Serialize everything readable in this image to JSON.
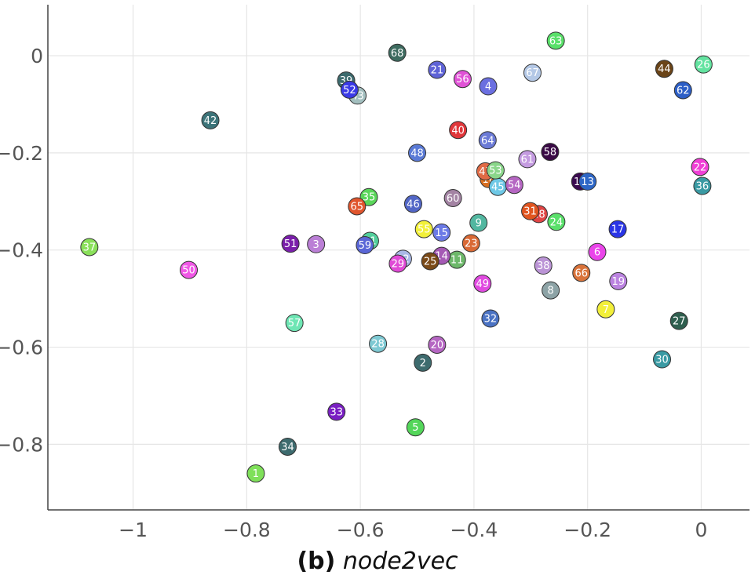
{
  "caption": {
    "panel": "(b)",
    "method": "node2vec"
  },
  "chart_data": {
    "type": "scatter",
    "title": "",
    "xlabel": "",
    "ylabel": "",
    "xlim": [
      -1.15,
      0.085
    ],
    "ylim": [
      -0.935,
      0.105
    ],
    "xticks": [
      -1,
      -0.8,
      -0.6,
      -0.4,
      -0.2,
      0
    ],
    "xtick_labels": [
      "−1",
      "−0.8",
      "−0.6",
      "−0.4",
      "−0.2",
      "0"
    ],
    "yticks": [
      0,
      -0.2,
      -0.4,
      -0.6,
      -0.8
    ],
    "ytick_labels": [
      "0",
      "−0.2",
      "−0.4",
      "−0.6",
      "−0.8"
    ],
    "grid": true,
    "points": [
      {
        "label": "1",
        "x": -0.784,
        "y": -0.86,
        "color": "#7fe05a"
      },
      {
        "label": "2",
        "x": -0.49,
        "y": -0.632,
        "color": "#3d6b6e"
      },
      {
        "label": "3",
        "x": -0.678,
        "y": -0.388,
        "color": "#bb7fd6"
      },
      {
        "label": "4",
        "x": -0.375,
        "y": -0.063,
        "color": "#6b6fe0"
      },
      {
        "label": "5",
        "x": -0.503,
        "y": -0.765,
        "color": "#54d65a"
      },
      {
        "label": "6",
        "x": -0.183,
        "y": -0.404,
        "color": "#ea45ea"
      },
      {
        "label": "7",
        "x": -0.168,
        "y": -0.522,
        "color": "#f2ef3a"
      },
      {
        "label": "8",
        "x": -0.265,
        "y": -0.483,
        "color": "#8da3a6"
      },
      {
        "label": "9",
        "x": -0.392,
        "y": -0.344,
        "color": "#52b7a0"
      },
      {
        "label": "10",
        "x": -0.213,
        "y": -0.259,
        "color": "#3a0a50"
      },
      {
        "label": "11",
        "x": -0.43,
        "y": -0.42,
        "color": "#6db86a"
      },
      {
        "label": "12",
        "x": -0.525,
        "y": -0.418,
        "color": "#a9b8e6"
      },
      {
        "label": "13",
        "x": -0.2,
        "y": -0.259,
        "color": "#2d66c6"
      },
      {
        "label": "14",
        "x": -0.457,
        "y": -0.412,
        "color": "#a55ab5"
      },
      {
        "label": "15",
        "x": -0.457,
        "y": -0.364,
        "color": "#6b7ae6"
      },
      {
        "label": "16",
        "x": -0.374,
        "y": -0.254,
        "color": "#d86f22"
      },
      {
        "label": "17",
        "x": -0.147,
        "y": -0.357,
        "color": "#2a35e6"
      },
      {
        "label": "18",
        "x": -0.286,
        "y": -0.326,
        "color": "#e04545"
      },
      {
        "label": "19",
        "x": -0.146,
        "y": -0.464,
        "color": "#bb83e0"
      },
      {
        "label": "20",
        "x": -0.465,
        "y": -0.595,
        "color": "#b566c2"
      },
      {
        "label": "21",
        "x": -0.465,
        "y": -0.029,
        "color": "#5f63d6"
      },
      {
        "label": "22",
        "x": -0.002,
        "y": -0.229,
        "color": "#f03fd6"
      },
      {
        "label": "23",
        "x": -0.405,
        "y": -0.386,
        "color": "#d96935"
      },
      {
        "label": "24",
        "x": -0.255,
        "y": -0.342,
        "color": "#5ae06a"
      },
      {
        "label": "25",
        "x": -0.477,
        "y": -0.423,
        "color": "#7a4a18"
      },
      {
        "label": "26",
        "x": 0.004,
        "y": -0.018,
        "color": "#63e3a0"
      },
      {
        "label": "27",
        "x": -0.039,
        "y": -0.546,
        "color": "#2f5f4f"
      },
      {
        "label": "28",
        "x": -0.569,
        "y": -0.593,
        "color": "#7ec9d3"
      },
      {
        "label": "29",
        "x": -0.534,
        "y": -0.428,
        "color": "#e04ad6"
      },
      {
        "label": "30",
        "x": -0.069,
        "y": -0.625,
        "color": "#3a9aa3"
      },
      {
        "label": "31",
        "x": -0.301,
        "y": -0.32,
        "color": "#e05520"
      },
      {
        "label": "32",
        "x": -0.371,
        "y": -0.541,
        "color": "#4a72c3"
      },
      {
        "label": "33",
        "x": -0.642,
        "y": -0.733,
        "color": "#7a1fc3"
      },
      {
        "label": "34",
        "x": -0.728,
        "y": -0.805,
        "color": "#3d6b6e"
      },
      {
        "label": "35",
        "x": -0.585,
        "y": -0.291,
        "color": "#5ad65a"
      },
      {
        "label": "36",
        "x": 0.002,
        "y": -0.268,
        "color": "#3a9aa3"
      },
      {
        "label": "37",
        "x": -1.077,
        "y": -0.394,
        "color": "#8ae05a"
      },
      {
        "label": "38",
        "x": -0.278,
        "y": -0.432,
        "color": "#bb94d6"
      },
      {
        "label": "39",
        "x": -0.625,
        "y": -0.051,
        "color": "#3d6b6e"
      },
      {
        "label": "40",
        "x": -0.428,
        "y": -0.153,
        "color": "#e0363a"
      },
      {
        "label": "41",
        "x": -0.583,
        "y": -0.381,
        "color": "#52cf9c"
      },
      {
        "label": "42",
        "x": -0.864,
        "y": -0.133,
        "color": "#3d7479"
      },
      {
        "label": "43",
        "x": -0.605,
        "y": -0.082,
        "color": "#a3bfbf"
      },
      {
        "label": "44",
        "x": -0.065,
        "y": -0.027,
        "color": "#6a4418"
      },
      {
        "label": "45",
        "x": -0.358,
        "y": -0.27,
        "color": "#6ec8e6"
      },
      {
        "label": "46",
        "x": -0.507,
        "y": -0.305,
        "color": "#5266c6"
      },
      {
        "label": "47",
        "x": -0.38,
        "y": -0.238,
        "color": "#e06a45"
      },
      {
        "label": "48",
        "x": -0.5,
        "y": -0.2,
        "color": "#5a7ad6"
      },
      {
        "label": "49",
        "x": -0.385,
        "y": -0.469,
        "color": "#e04ae0"
      },
      {
        "label": "50",
        "x": -0.902,
        "y": -0.441,
        "color": "#f058e6"
      },
      {
        "label": "51",
        "x": -0.723,
        "y": -0.387,
        "color": "#7a1faa"
      },
      {
        "label": "52",
        "x": -0.619,
        "y": -0.07,
        "color": "#3a3ae6"
      },
      {
        "label": "53",
        "x": -0.362,
        "y": -0.236,
        "color": "#8ad68a"
      },
      {
        "label": "54",
        "x": -0.329,
        "y": -0.266,
        "color": "#b566c2"
      },
      {
        "label": "55",
        "x": -0.488,
        "y": -0.357,
        "color": "#f2f03a"
      },
      {
        "label": "56",
        "x": -0.42,
        "y": -0.048,
        "color": "#e052d6"
      },
      {
        "label": "57",
        "x": -0.716,
        "y": -0.55,
        "color": "#6ee6b4"
      },
      {
        "label": "58",
        "x": -0.266,
        "y": -0.198,
        "color": "#3a0a45"
      },
      {
        "label": "59",
        "x": -0.592,
        "y": -0.39,
        "color": "#5a66d6"
      },
      {
        "label": "60",
        "x": -0.437,
        "y": -0.293,
        "color": "#a383a3"
      },
      {
        "label": "61",
        "x": -0.306,
        "y": -0.213,
        "color": "#c49be0"
      },
      {
        "label": "62",
        "x": -0.032,
        "y": -0.071,
        "color": "#2d5fc6"
      },
      {
        "label": "63",
        "x": -0.256,
        "y": 0.031,
        "color": "#5ae06a"
      },
      {
        "label": "64",
        "x": -0.376,
        "y": -0.174,
        "color": "#6b7ad6"
      },
      {
        "label": "65",
        "x": -0.606,
        "y": -0.31,
        "color": "#e0552d"
      },
      {
        "label": "66",
        "x": -0.211,
        "y": -0.447,
        "color": "#d9733a"
      },
      {
        "label": "67",
        "x": -0.297,
        "y": -0.035,
        "color": "#b4c8e6"
      },
      {
        "label": "68",
        "x": -0.535,
        "y": 0.006,
        "color": "#3d6b5f"
      }
    ]
  }
}
